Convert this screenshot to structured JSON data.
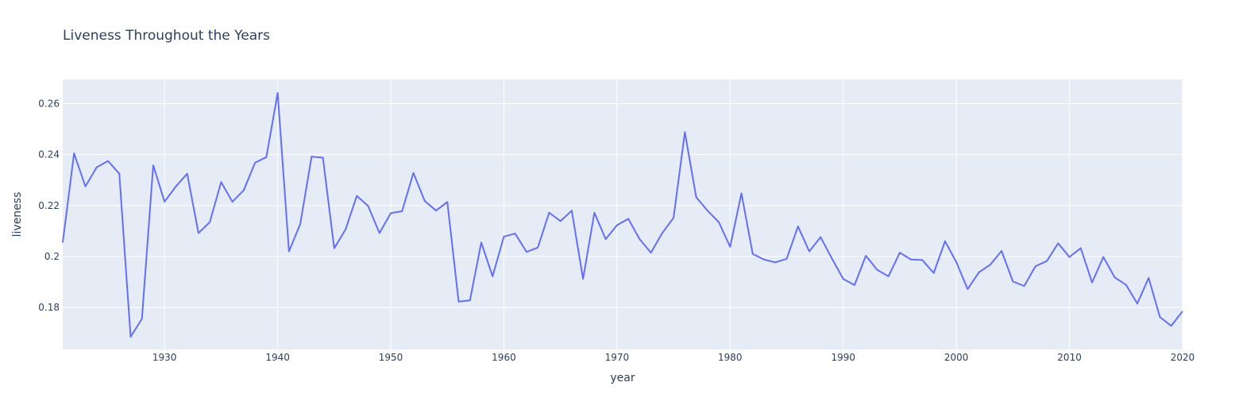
{
  "chart_data": {
    "type": "line",
    "title": "Liveness Throughout the Years",
    "xlabel": "year",
    "ylabel": "liveness",
    "xlim": [
      1921,
      2020
    ],
    "ylim": [
      0.1635,
      0.2695
    ],
    "x_ticks": [
      1930,
      1940,
      1950,
      1960,
      1970,
      1980,
      1990,
      2000,
      2010,
      2020
    ],
    "y_ticks": [
      0.18,
      0.2,
      0.22,
      0.24,
      0.26
    ],
    "y_tick_labels": [
      "0.18",
      "0.2",
      "0.22",
      "0.24",
      "0.26"
    ],
    "grid": true,
    "colors": {
      "line": "#636efa",
      "plot_bg": "#e5ecf6",
      "grid": "#ffffff",
      "text": "#2a3f5f"
    },
    "series": [
      {
        "x": [
          1921,
          1922,
          1923,
          1924,
          1925,
          1926,
          1927,
          1928,
          1929,
          1930,
          1931,
          1932,
          1933,
          1934,
          1935,
          1936,
          1937,
          1938,
          1939,
          1940,
          1941,
          1942,
          1943,
          1944,
          1945,
          1946,
          1947,
          1948,
          1949,
          1950,
          1951,
          1952,
          1953,
          1954,
          1955,
          1956,
          1957,
          1958,
          1959,
          1960,
          1961,
          1962,
          1963,
          1964,
          1965,
          1966,
          1967,
          1968,
          1969,
          1970,
          1971,
          1972,
          1973,
          1974,
          1975,
          1976,
          1977,
          1978,
          1979,
          1980,
          1981,
          1982,
          1983,
          1984,
          1985,
          1986,
          1987,
          1988,
          1989,
          1990,
          1991,
          1992,
          1993,
          1994,
          1995,
          1996,
          1997,
          1998,
          1999,
          2000,
          2001,
          2002,
          2003,
          2004,
          2005,
          2006,
          2007,
          2008,
          2009,
          2010,
          2011,
          2012,
          2013,
          2014,
          2015,
          2016,
          2017,
          2018,
          2019,
          2020
        ],
        "values": [
          0.2055,
          0.2405,
          0.2275,
          0.235,
          0.2375,
          0.2325,
          0.1685,
          0.1755,
          0.2358,
          0.2215,
          0.2275,
          0.2325,
          0.2092,
          0.2135,
          0.2292,
          0.2215,
          0.226,
          0.2368,
          0.239,
          0.2642,
          0.202,
          0.2128,
          0.2392,
          0.2388,
          0.2032,
          0.2106,
          0.2238,
          0.2198,
          0.2092,
          0.217,
          0.2178,
          0.2328,
          0.2218,
          0.218,
          0.2214,
          0.1823,
          0.1828,
          0.2055,
          0.1922,
          0.2078,
          0.209,
          0.2018,
          0.2035,
          0.2172,
          0.2139,
          0.218,
          0.1912,
          0.2172,
          0.2068,
          0.2123,
          0.2148,
          0.2068,
          0.2015,
          0.2092,
          0.2152,
          0.2488,
          0.2233,
          0.218,
          0.2135,
          0.2038,
          0.2248,
          0.201,
          0.1988,
          0.1977,
          0.1991,
          0.2118,
          0.202,
          0.2076,
          0.1992,
          0.1912,
          0.1888,
          0.2003,
          0.1948,
          0.1922,
          0.2015,
          0.1988,
          0.1986,
          0.1935,
          0.206,
          0.1978,
          0.1872,
          0.1938,
          0.1968,
          0.2022,
          0.1902,
          0.1884,
          0.1962,
          0.1982,
          0.2052,
          0.1998,
          0.2033,
          0.1898,
          0.1998,
          0.1918,
          0.1889,
          0.1815,
          0.1916,
          0.1762,
          0.1728,
          0.1785
        ]
      }
    ]
  }
}
